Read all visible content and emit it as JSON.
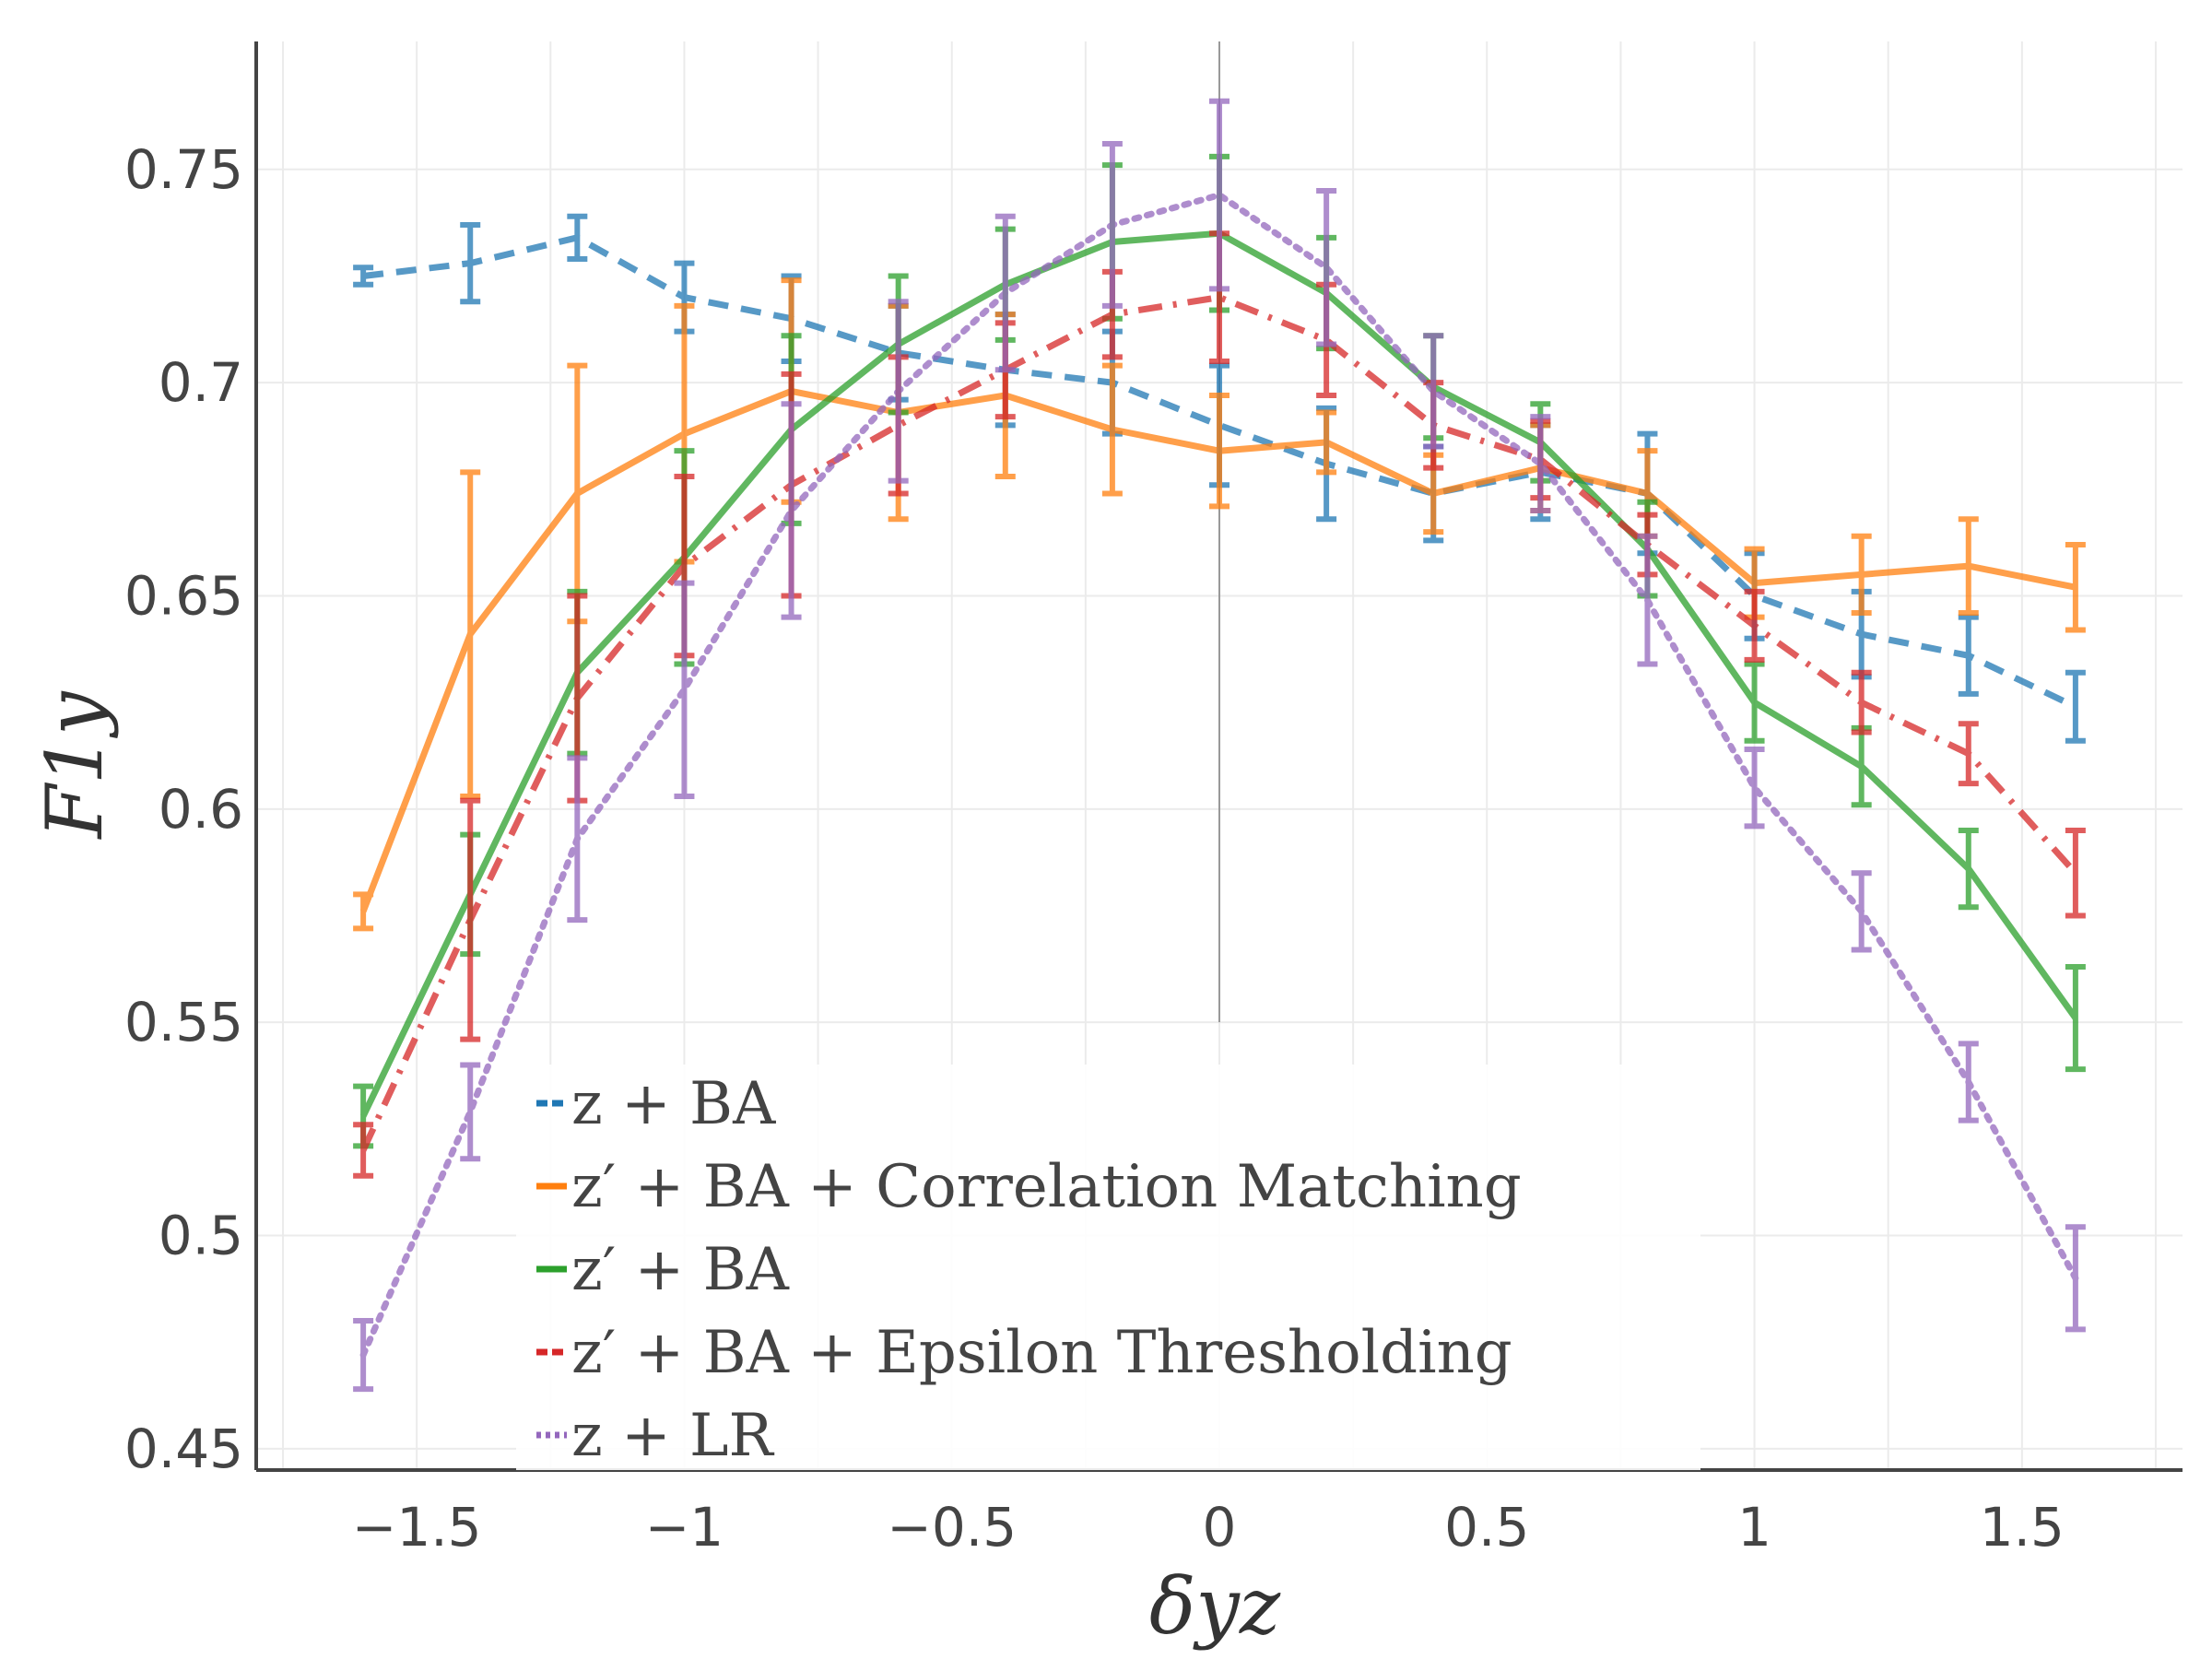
{
  "chart_data": {
    "type": "line",
    "xlabel": "δyz",
    "ylabel": "F1y",
    "xlim": [
      -1.8,
      1.8
    ],
    "ylim": [
      0.445,
      0.78
    ],
    "x_ticks": [
      -1.5,
      -1,
      -0.5,
      0,
      0.5,
      1,
      1.5
    ],
    "x_tick_labels": [
      "−1.5",
      "−1",
      "−0.5",
      "0",
      "0.5",
      "1",
      "1.5"
    ],
    "y_ticks": [
      0.45,
      0.5,
      0.55,
      0.6,
      0.65,
      0.7,
      0.75
    ],
    "y_tick_labels": [
      "0.45",
      "0.5",
      "0.55",
      "0.6",
      "0.65",
      "0.7",
      "0.75"
    ],
    "grid": true,
    "legend_position": "bottom-left",
    "x": [
      -1.6,
      -1.4,
      -1.2,
      -1.0,
      -0.8,
      -0.6,
      -0.4,
      -0.2,
      0.0,
      0.2,
      0.4,
      0.6,
      0.8,
      1.0,
      1.2,
      1.4,
      1.6
    ],
    "series": [
      {
        "name": "z + BA",
        "color": "#1f77b4",
        "dash": "dashed",
        "values": [
          0.725,
          0.728,
          0.734,
          0.72,
          0.715,
          0.707,
          0.703,
          0.7,
          0.69,
          0.681,
          0.674,
          0.679,
          0.674,
          0.65,
          0.641,
          0.636,
          0.624
        ],
        "errors": [
          0.002,
          0.009,
          0.005,
          0.008,
          0.01,
          0.011,
          0.013,
          0.012,
          0.014,
          0.013,
          0.011,
          0.011,
          0.014,
          0.01,
          0.01,
          0.009,
          0.008
        ]
      },
      {
        "name": "z′ + BA + Correlation Matching",
        "color": "#ff7f0e",
        "dash": "solid",
        "values": [
          0.576,
          0.641,
          0.674,
          0.688,
          0.698,
          0.693,
          0.697,
          0.689,
          0.684,
          0.686,
          0.674,
          0.68,
          0.674,
          0.653,
          0.655,
          0.657,
          0.652
        ],
        "errors": [
          0.004,
          0.038,
          0.03,
          0.03,
          0.026,
          0.025,
          0.019,
          0.015,
          0.013,
          0.007,
          0.009,
          0.01,
          0.01,
          0.008,
          0.009,
          0.011,
          0.01
        ]
      },
      {
        "name": "z′ + BA",
        "color": "#2ca02c",
        "dash": "solid",
        "values": [
          0.528,
          0.58,
          0.632,
          0.659,
          0.689,
          0.709,
          0.723,
          0.733,
          0.735,
          0.721,
          0.699,
          0.686,
          0.661,
          0.625,
          0.61,
          0.586,
          0.551
        ],
        "errors": [
          0.007,
          0.014,
          0.019,
          0.025,
          0.022,
          0.016,
          0.013,
          0.018,
          0.018,
          0.013,
          0.012,
          0.009,
          0.011,
          0.009,
          0.009,
          0.009,
          0.012
        ]
      },
      {
        "name": "z′ + BA + Epsilon Thresholding",
        "color": "#d62728",
        "dash": "dashdot",
        "values": [
          0.52,
          0.574,
          0.626,
          0.657,
          0.676,
          0.69,
          0.703,
          0.716,
          0.72,
          0.71,
          0.69,
          0.682,
          0.662,
          0.643,
          0.625,
          0.613,
          0.585
        ],
        "errors": [
          0.006,
          0.028,
          0.024,
          0.021,
          0.026,
          0.016,
          0.011,
          0.01,
          0.015,
          0.013,
          0.01,
          0.009,
          0.007,
          0.008,
          0.007,
          0.007,
          0.01
        ]
      },
      {
        "name": "z + LR",
        "color": "#9467bd",
        "dash": "dotted",
        "values": [
          0.472,
          0.529,
          0.593,
          0.628,
          0.67,
          0.698,
          0.721,
          0.737,
          0.744,
          0.727,
          0.698,
          0.681,
          0.649,
          0.605,
          0.576,
          0.536,
          0.49
        ],
        "errors": [
          0.008,
          0.011,
          0.019,
          0.025,
          0.025,
          0.021,
          0.018,
          0.019,
          0.022,
          0.018,
          0.013,
          0.011,
          0.015,
          0.009,
          0.009,
          0.009,
          0.012
        ]
      }
    ],
    "legend_labels": [
      "z + BA",
      "z′ + BA + Correlation Matching",
      "z′ + BA",
      "z′ + BA + Epsilon Thresholding",
      "z + LR"
    ]
  }
}
